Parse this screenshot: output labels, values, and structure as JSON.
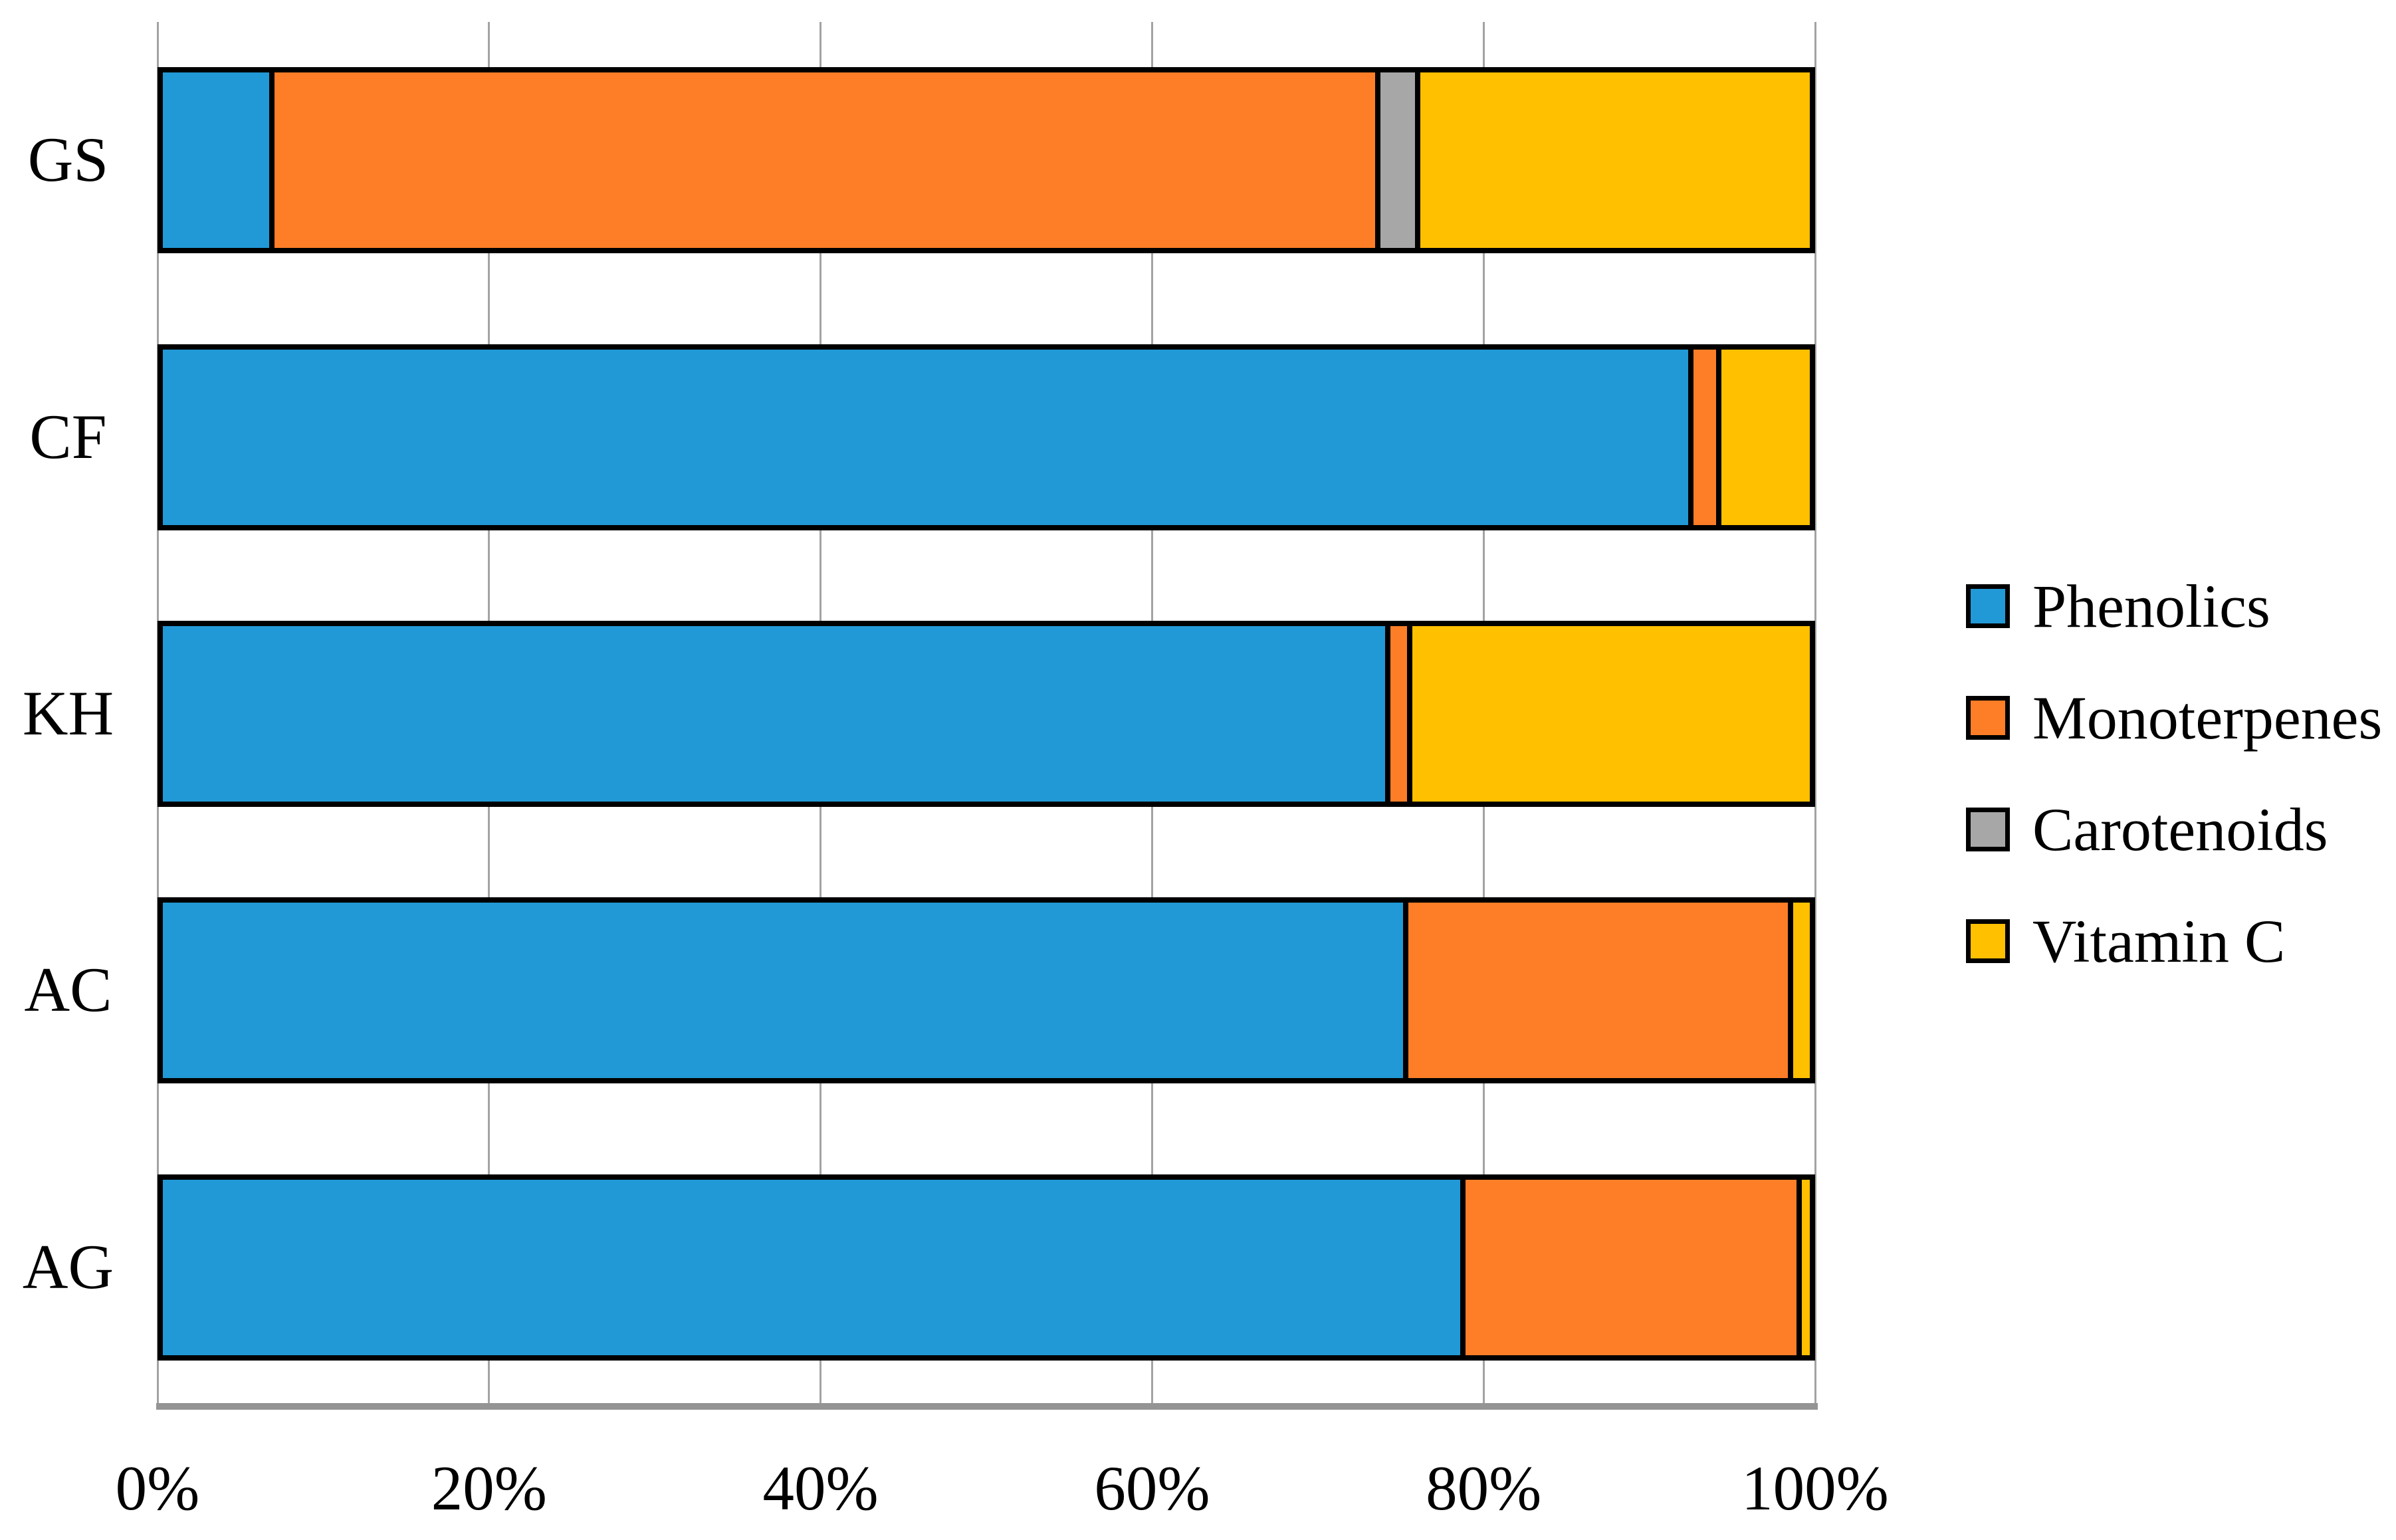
{
  "chart_data": {
    "type": "bar",
    "orientation": "horizontal",
    "stacked": true,
    "title": "",
    "xlabel": "",
    "ylabel": "",
    "xlim": [
      0,
      100
    ],
    "grid": "vertical",
    "legend_position": "right",
    "categories": [
      "GS",
      "CF",
      "KH",
      "AC",
      "AG"
    ],
    "x_ticks": [
      {
        "label": "0%",
        "value": 0
      },
      {
        "label": "20%",
        "value": 20
      },
      {
        "label": "40%",
        "value": 40
      },
      {
        "label": "60%",
        "value": 60
      },
      {
        "label": "80%",
        "value": 80
      },
      {
        "label": "100%",
        "value": 100
      }
    ],
    "series": [
      {
        "name": "Phenolics",
        "color": "#2199D6",
        "values": [
          6.5,
          93.2,
          74.7,
          75.8,
          79.3
        ]
      },
      {
        "name": "Monoterpenes",
        "color": "#FD7E27",
        "values": [
          67.5,
          1.4,
          1.0,
          23.2,
          20.2
        ]
      },
      {
        "name": "Carotenoids",
        "color": "#A7A7A7",
        "values": [
          2.1,
          0.0,
          0.0,
          0.0,
          0.0
        ]
      },
      {
        "name": "Vitamin C",
        "color": "#FFC000",
        "values": [
          23.9,
          5.4,
          24.3,
          1.0,
          0.5
        ]
      }
    ],
    "colors": {
      "gridline": "#A3A3A3",
      "axis_line": "#949494",
      "bar_border": "#000000",
      "text": "#000000",
      "background": "#FFFFFF"
    }
  }
}
